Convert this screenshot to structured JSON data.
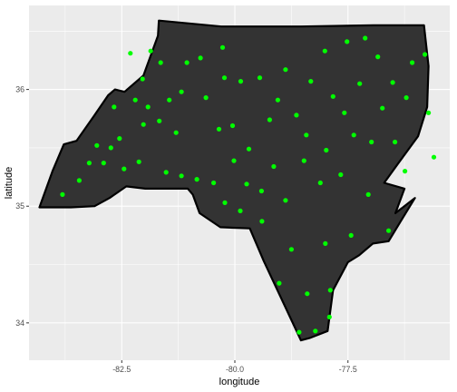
{
  "chart_data": {
    "type": "scatter",
    "title": "",
    "xlabel": "longitude",
    "ylabel": "latitude",
    "xlim": [
      -84.55,
      -75.25
    ],
    "ylim": [
      33.68,
      36.72
    ],
    "x_ticks": [
      {
        "value": -82.5,
        "label": "-82.5"
      },
      {
        "value": -80.0,
        "label": "-80.0"
      },
      {
        "value": -77.5,
        "label": "-77.5"
      }
    ],
    "y_ticks": [
      {
        "value": 34,
        "label": "34"
      },
      {
        "value": 35,
        "label": "35"
      },
      {
        "value": 36,
        "label": "36"
      }
    ],
    "grid": true,
    "panel_background": "#ebebeb",
    "grid_color": "#ffffff",
    "polygon_fill": "#333333",
    "polygon_stroke": "#000000",
    "point_color": "#00ff00",
    "polygon": [
      [
        -84.32,
        34.99
      ],
      [
        -83.62,
        34.99
      ],
      [
        -83.1,
        35.0
      ],
      [
        -82.77,
        35.07
      ],
      [
        -82.4,
        35.17
      ],
      [
        -81.98,
        35.15
      ],
      [
        -81.04,
        35.15
      ],
      [
        -80.93,
        35.1
      ],
      [
        -80.78,
        34.94
      ],
      [
        -80.32,
        34.82
      ],
      [
        -79.67,
        34.81
      ],
      [
        -79.36,
        34.53
      ],
      [
        -78.54,
        33.85
      ],
      [
        -78.35,
        33.87
      ],
      [
        -77.95,
        33.93
      ],
      [
        -77.83,
        34.28
      ],
      [
        -77.5,
        34.52
      ],
      [
        -77.25,
        34.58
      ],
      [
        -76.95,
        34.68
      ],
      [
        -76.6,
        34.7
      ],
      [
        -76.35,
        34.86
      ],
      [
        -76.02,
        35.07
      ],
      [
        -76.45,
        34.94
      ],
      [
        -76.25,
        35.15
      ],
      [
        -76.7,
        35.2
      ],
      [
        -76.42,
        35.35
      ],
      [
        -75.95,
        35.6
      ],
      [
        -75.75,
        35.85
      ],
      [
        -75.72,
        36.2
      ],
      [
        -75.82,
        36.55
      ],
      [
        -75.89,
        36.55
      ],
      [
        -76.93,
        36.55
      ],
      [
        -78.54,
        36.54
      ],
      [
        -80.3,
        36.54
      ],
      [
        -81.68,
        36.59
      ],
      [
        -81.7,
        36.46
      ],
      [
        -82.02,
        36.12
      ],
      [
        -82.44,
        35.98
      ],
      [
        -82.65,
        36.0
      ],
      [
        -82.8,
        35.95
      ],
      [
        -83.1,
        35.78
      ],
      [
        -83.5,
        35.56
      ],
      [
        -83.78,
        35.53
      ],
      [
        -84.03,
        35.3
      ],
      [
        -84.32,
        34.99
      ]
    ],
    "points": [
      [
        -82.31,
        36.31
      ],
      [
        -81.86,
        36.33
      ],
      [
        -81.64,
        36.23
      ],
      [
        -82.04,
        36.09
      ],
      [
        -82.2,
        35.91
      ],
      [
        -82.55,
        35.58
      ],
      [
        -82.74,
        35.5
      ],
      [
        -82.45,
        35.32
      ],
      [
        -82.02,
        35.7
      ],
      [
        -81.67,
        35.73
      ],
      [
        -81.3,
        35.63
      ],
      [
        -81.45,
        35.91
      ],
      [
        -81.06,
        36.23
      ],
      [
        -80.76,
        36.27
      ],
      [
        -80.27,
        36.36
      ],
      [
        -80.23,
        36.1
      ],
      [
        -79.87,
        36.07
      ],
      [
        -79.45,
        36.1
      ],
      [
        -79.05,
        35.91
      ],
      [
        -78.88,
        36.17
      ],
      [
        -78.64,
        35.78
      ],
      [
        -78.32,
        36.07
      ],
      [
        -77.83,
        35.94
      ],
      [
        -78.01,
        36.33
      ],
      [
        -77.52,
        36.41
      ],
      [
        -77.12,
        36.44
      ],
      [
        -76.84,
        36.28
      ],
      [
        -76.51,
        36.06
      ],
      [
        -76.08,
        36.23
      ],
      [
        -76.21,
        35.93
      ],
      [
        -76.46,
        35.55
      ],
      [
        -76.98,
        35.55
      ],
      [
        -77.37,
        35.61
      ],
      [
        -77.66,
        35.27
      ],
      [
        -78.11,
        35.2
      ],
      [
        -78.47,
        35.39
      ],
      [
        -78.88,
        35.05
      ],
      [
        -79.14,
        35.34
      ],
      [
        -79.41,
        35.13
      ],
      [
        -79.74,
        35.19
      ],
      [
        -80.02,
        35.39
      ],
      [
        -80.35,
        35.66
      ],
      [
        -80.47,
        35.2
      ],
      [
        -80.84,
        35.23
      ],
      [
        -81.18,
        35.26
      ],
      [
        -81.52,
        35.29
      ],
      [
        -82.12,
        35.38
      ],
      [
        -82.9,
        35.37
      ],
      [
        -83.22,
        35.37
      ],
      [
        -83.44,
        35.22
      ],
      [
        -83.81,
        35.1
      ],
      [
        -83.05,
        35.52
      ],
      [
        -82.67,
        35.85
      ],
      [
        -81.92,
        35.85
      ],
      [
        -81.18,
        35.98
      ],
      [
        -80.64,
        35.93
      ],
      [
        -80.05,
        35.69
      ],
      [
        -79.69,
        35.49
      ],
      [
        -79.23,
        35.74
      ],
      [
        -78.42,
        35.61
      ],
      [
        -77.98,
        35.48
      ],
      [
        -77.58,
        35.8
      ],
      [
        -77.24,
        36.05
      ],
      [
        -76.74,
        35.84
      ],
      [
        -78.75,
        34.63
      ],
      [
        -79.02,
        34.34
      ],
      [
        -78.4,
        34.25
      ],
      [
        -78.0,
        34.68
      ],
      [
        -77.43,
        34.75
      ],
      [
        -77.05,
        35.1
      ],
      [
        -76.6,
        34.79
      ],
      [
        -77.89,
        34.28
      ],
      [
        -78.22,
        33.93
      ],
      [
        -78.58,
        33.92
      ],
      [
        -77.91,
        34.05
      ],
      [
        -79.88,
        34.96
      ],
      [
        -80.22,
        35.03
      ],
      [
        -79.4,
        34.87
      ],
      [
        -76.24,
        35.3
      ],
      [
        -75.72,
        35.8
      ],
      [
        -75.6,
        35.42
      ],
      [
        -75.8,
        36.3
      ]
    ]
  }
}
